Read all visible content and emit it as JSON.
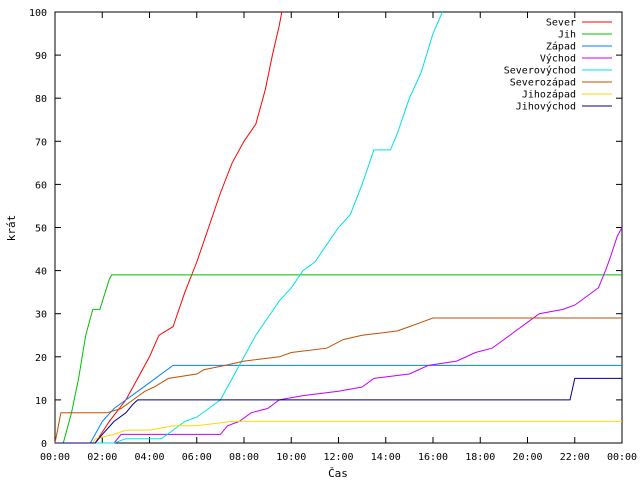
{
  "chart_data": {
    "type": "line",
    "xlabel": "Čas",
    "ylabel": "krát",
    "xlim": [
      0,
      24
    ],
    "ylim": [
      0,
      100
    ],
    "x_ticks": [
      {
        "value": 0,
        "label": "00:00"
      },
      {
        "value": 2,
        "label": "02:00"
      },
      {
        "value": 4,
        "label": "04:00"
      },
      {
        "value": 6,
        "label": "06:00"
      },
      {
        "value": 8,
        "label": "08:00"
      },
      {
        "value": 10,
        "label": "10:00"
      },
      {
        "value": 12,
        "label": "12:00"
      },
      {
        "value": 14,
        "label": "14:00"
      },
      {
        "value": 16,
        "label": "16:00"
      },
      {
        "value": 18,
        "label": "18:00"
      },
      {
        "value": 20,
        "label": "20:00"
      },
      {
        "value": 22,
        "label": "22:00"
      },
      {
        "value": 24,
        "label": "00:00"
      }
    ],
    "y_ticks": [
      {
        "value": 0,
        "label": "0"
      },
      {
        "value": 10,
        "label": "10"
      },
      {
        "value": 20,
        "label": "20"
      },
      {
        "value": 30,
        "label": "30"
      },
      {
        "value": 40,
        "label": "40"
      },
      {
        "value": 50,
        "label": "50"
      },
      {
        "value": 60,
        "label": "60"
      },
      {
        "value": 70,
        "label": "70"
      },
      {
        "value": 80,
        "label": "80"
      },
      {
        "value": 90,
        "label": "90"
      },
      {
        "value": 100,
        "label": "100"
      }
    ],
    "grid": false,
    "legend_position": "top-right",
    "series": [
      {
        "name": "Sever",
        "color": "#ff0000",
        "points": [
          [
            0,
            0
          ],
          [
            1.7,
            0
          ],
          [
            2.3,
            5
          ],
          [
            3,
            10
          ],
          [
            3.5,
            15
          ],
          [
            4,
            20
          ],
          [
            4.4,
            25
          ],
          [
            5,
            27
          ],
          [
            5.5,
            35
          ],
          [
            6,
            42
          ],
          [
            6.5,
            50
          ],
          [
            7,
            58
          ],
          [
            7.5,
            65
          ],
          [
            8,
            70
          ],
          [
            8.5,
            74
          ],
          [
            8.9,
            82
          ],
          [
            9.2,
            90
          ],
          [
            9.5,
            97
          ],
          [
            9.6,
            100
          ]
        ]
      },
      {
        "name": "Jih",
        "color": "#00c000",
        "points": [
          [
            0,
            0
          ],
          [
            0.35,
            0
          ],
          [
            0.7,
            7
          ],
          [
            1,
            15
          ],
          [
            1.3,
            25
          ],
          [
            1.6,
            31
          ],
          [
            1.9,
            31
          ],
          [
            2.3,
            38
          ],
          [
            2.4,
            39
          ],
          [
            24,
            39
          ]
        ]
      },
      {
        "name": "Západ",
        "color": "#0080ff",
        "points": [
          [
            0,
            0
          ],
          [
            1.5,
            0
          ],
          [
            2,
            5
          ],
          [
            2.5,
            8
          ],
          [
            3,
            10
          ],
          [
            3.5,
            12
          ],
          [
            4,
            14
          ],
          [
            4.5,
            16
          ],
          [
            5,
            18
          ],
          [
            24,
            18
          ]
        ]
      },
      {
        "name": "Východ",
        "color": "#c000ff",
        "points": [
          [
            0,
            0
          ],
          [
            2.5,
            0
          ],
          [
            2.8,
            2
          ],
          [
            4,
            2
          ],
          [
            7,
            2
          ],
          [
            7.3,
            4
          ],
          [
            7.8,
            5
          ],
          [
            8.3,
            7
          ],
          [
            9,
            8
          ],
          [
            9.5,
            10
          ],
          [
            10.5,
            11
          ],
          [
            12,
            12
          ],
          [
            13,
            13
          ],
          [
            13.5,
            15
          ],
          [
            15,
            16
          ],
          [
            15.8,
            18
          ],
          [
            17,
            19
          ],
          [
            17.8,
            21
          ],
          [
            18.5,
            22
          ],
          [
            19,
            24
          ],
          [
            19.5,
            26
          ],
          [
            20,
            28
          ],
          [
            20.5,
            30
          ],
          [
            21.5,
            31
          ],
          [
            22,
            32
          ],
          [
            22.5,
            34
          ],
          [
            23,
            36
          ],
          [
            23.3,
            40
          ],
          [
            23.5,
            43
          ],
          [
            23.8,
            48
          ],
          [
            24,
            50
          ]
        ]
      },
      {
        "name": "Severovýchod",
        "color": "#00e0e0",
        "points": [
          [
            0,
            0
          ],
          [
            2.5,
            0
          ],
          [
            3,
            1
          ],
          [
            4.5,
            1
          ],
          [
            5,
            3
          ],
          [
            5.5,
            5
          ],
          [
            6,
            6
          ],
          [
            6.5,
            8
          ],
          [
            7,
            10
          ],
          [
            7.5,
            15
          ],
          [
            8,
            20
          ],
          [
            8.5,
            25
          ],
          [
            9,
            29
          ],
          [
            9.5,
            33
          ],
          [
            10,
            36
          ],
          [
            10.5,
            40
          ],
          [
            11,
            42
          ],
          [
            11.5,
            46
          ],
          [
            12,
            50
          ],
          [
            12.5,
            53
          ],
          [
            13,
            60
          ],
          [
            13.5,
            68
          ],
          [
            14.2,
            68
          ],
          [
            14.5,
            72
          ],
          [
            15,
            80
          ],
          [
            15.5,
            86
          ],
          [
            16,
            95
          ],
          [
            16.4,
            100
          ]
        ]
      },
      {
        "name": "Severozápad",
        "color": "#c05000",
        "points": [
          [
            0,
            0
          ],
          [
            0.25,
            7
          ],
          [
            2.2,
            7
          ],
          [
            2.8,
            8
          ],
          [
            3.3,
            10
          ],
          [
            3.8,
            12
          ],
          [
            4.2,
            13
          ],
          [
            4.8,
            15
          ],
          [
            6,
            16
          ],
          [
            6.3,
            17
          ],
          [
            7.2,
            18
          ],
          [
            8,
            19
          ],
          [
            9.5,
            20
          ],
          [
            10,
            21
          ],
          [
            11.5,
            22
          ],
          [
            12.2,
            24
          ],
          [
            13,
            25
          ],
          [
            14.5,
            26
          ],
          [
            15,
            27
          ],
          [
            15.5,
            28
          ],
          [
            16,
            29
          ],
          [
            24,
            29
          ]
        ]
      },
      {
        "name": "Jihozápad",
        "color": "#ffd700",
        "points": [
          [
            0,
            0
          ],
          [
            1.6,
            0
          ],
          [
            1.7,
            1
          ],
          [
            2.5,
            2
          ],
          [
            3,
            3
          ],
          [
            4,
            3
          ],
          [
            5,
            4
          ],
          [
            6,
            4
          ],
          [
            7.5,
            5
          ],
          [
            24,
            5
          ]
        ]
      },
      {
        "name": "Jihovýchod",
        "color": "#000080",
        "points": [
          [
            0,
            0
          ],
          [
            1.7,
            0
          ],
          [
            2,
            2
          ],
          [
            2.5,
            5
          ],
          [
            3,
            7
          ],
          [
            3.3,
            9
          ],
          [
            3.5,
            10
          ],
          [
            21.8,
            10
          ],
          [
            22,
            15
          ],
          [
            24,
            15
          ]
        ]
      }
    ]
  }
}
